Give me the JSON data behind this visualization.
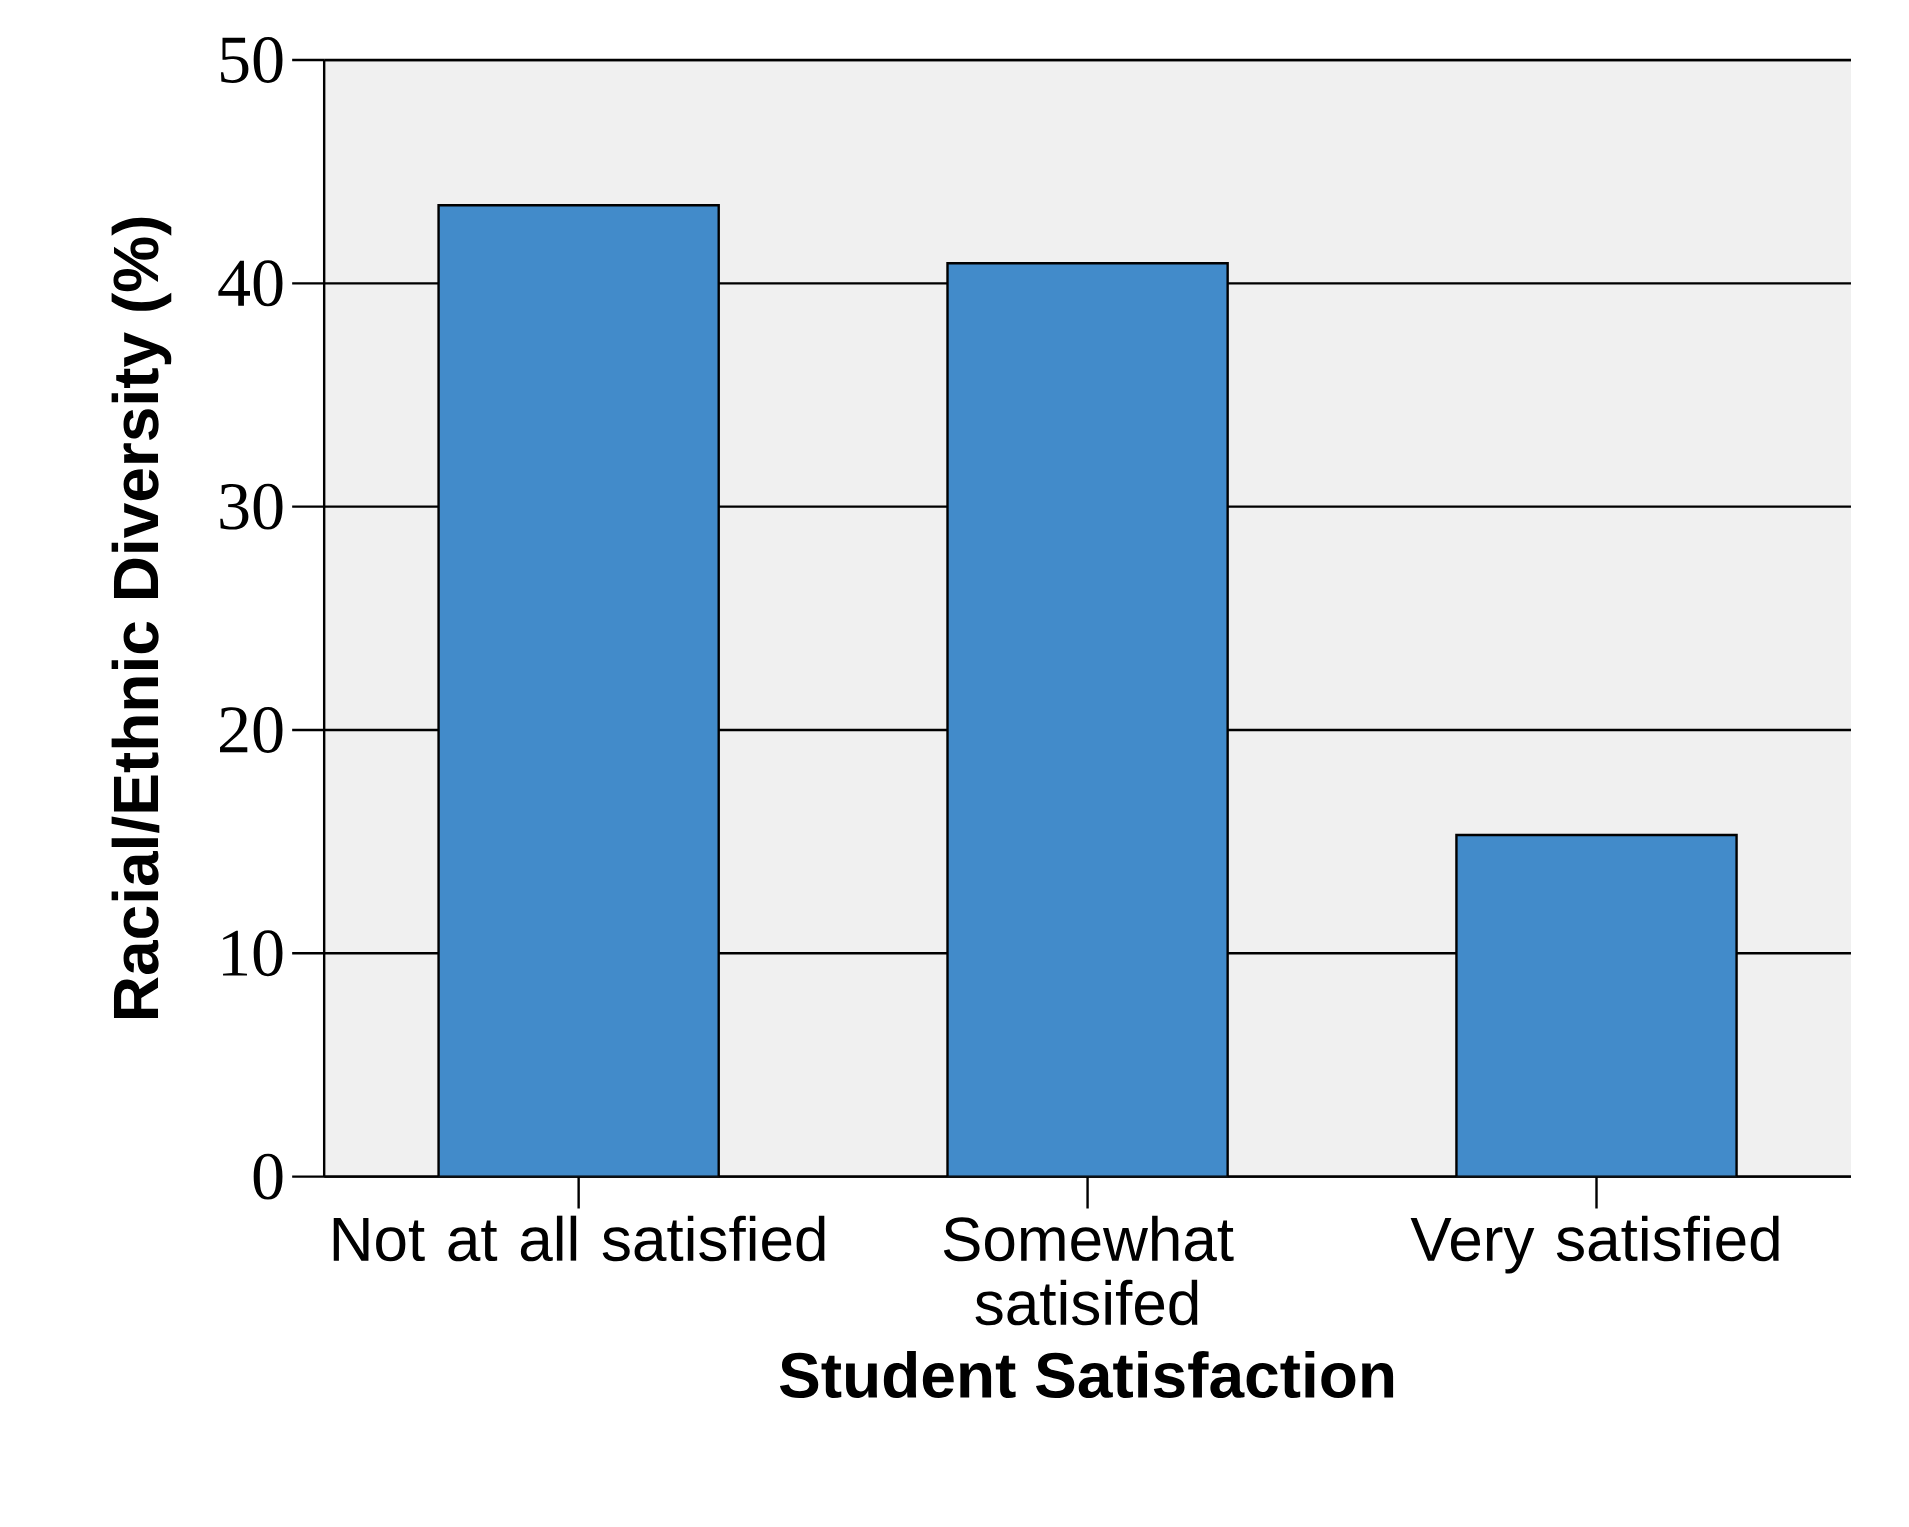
{
  "chart_data": {
    "type": "bar",
    "xlabel": "Student Satisfaction",
    "ylabel": "Racial/Ethnic Diversity (%)",
    "categories": [
      "Not at all satisfied",
      "Somewhat satisifed",
      "Very satisfied"
    ],
    "values": [
      43.5,
      40.9,
      15.3
    ],
    "color": "#428bca",
    "ylim": [
      0,
      50
    ],
    "yticks": [
      0,
      10,
      20,
      30,
      40,
      50
    ],
    "grid": "y"
  }
}
